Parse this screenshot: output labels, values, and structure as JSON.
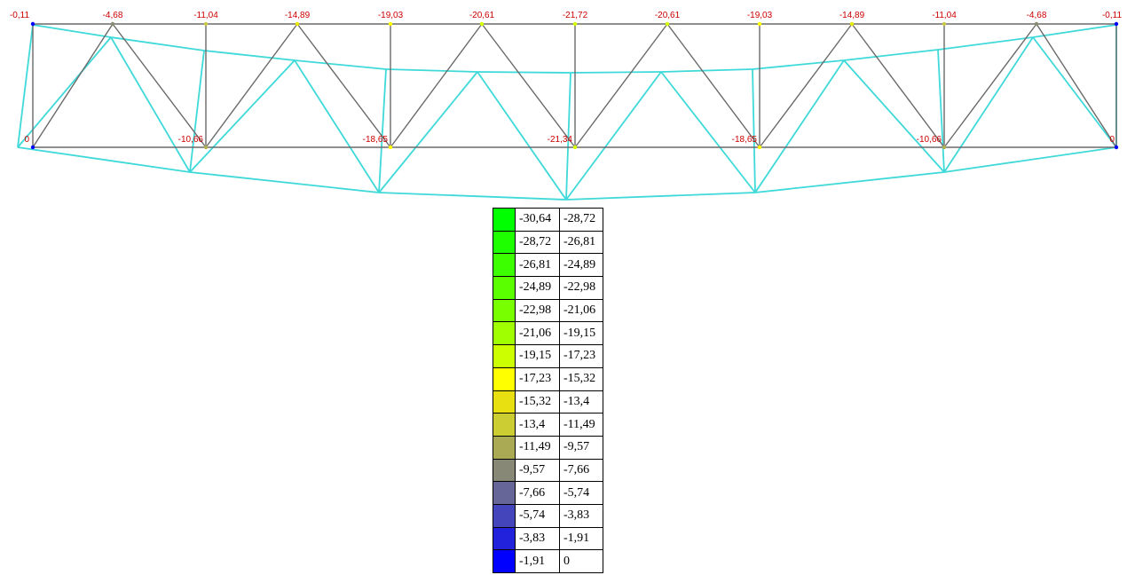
{
  "diagram": {
    "top_chord_labels": [
      "-0,11",
      "-4,68",
      "-11,04",
      "-14,89",
      "-19,03",
      "-20,61",
      "-21,72",
      "-20,61",
      "-19,03",
      "-14,89",
      "-11,04",
      "-4,68",
      "-0,11"
    ],
    "bottom_chord_labels": [
      "0",
      "",
      "-10,66",
      "",
      "-18,65",
      "",
      "-21,34",
      "",
      "-18,65",
      "",
      "-10,66",
      "",
      "0"
    ],
    "node_colors": {
      "top": [
        "#0000ff",
        "#8a8a6e",
        "#c8c84a",
        "#e8e800",
        "#ffff00",
        "#d4ff00",
        "#d4ff00",
        "#d4ff00",
        "#ffff00",
        "#e8e800",
        "#c8c84a",
        "#8a8a6e",
        "#0000ff"
      ],
      "bottom": [
        "#0000ff",
        "",
        "#b0b050",
        "",
        "#ffff00",
        "",
        "#d4ff00",
        "",
        "#ffff00",
        "",
        "#b0b050",
        "",
        "#0000ff"
      ]
    },
    "colors": {
      "undeformed": "#6a6a6a",
      "deformed": "#3fd9d9",
      "labels": "#cc0000"
    }
  },
  "legend": {
    "rows": [
      {
        "from": "-30,64",
        "to": "-28,72",
        "color": "#00ff00"
      },
      {
        "from": "-28,72",
        "to": "-26,81",
        "color": "#1eff00"
      },
      {
        "from": "-26,81",
        "to": "-24,89",
        "color": "#3cff00"
      },
      {
        "from": "-24,89",
        "to": "-22,98",
        "color": "#5aff00"
      },
      {
        "from": "-22,98",
        "to": "-21,06",
        "color": "#78ff00"
      },
      {
        "from": "-21,06",
        "to": "-19,15",
        "color": "#a0ff00"
      },
      {
        "from": "-19,15",
        "to": "-17,23",
        "color": "#ccff00"
      },
      {
        "from": "-17,23",
        "to": "-15,32",
        "color": "#ffff00"
      },
      {
        "from": "-15,32",
        "to": "-13,4",
        "color": "#e8e010"
      },
      {
        "from": "-13,4",
        "to": "-11,49",
        "color": "#cccc33"
      },
      {
        "from": "-11,49",
        "to": "-9,57",
        "color": "#aaaa55"
      },
      {
        "from": "-9,57",
        "to": "-7,66",
        "color": "#888877"
      },
      {
        "from": "-7,66",
        "to": "-5,74",
        "color": "#666699"
      },
      {
        "from": "-5,74",
        "to": "-3,83",
        "color": "#4444bb"
      },
      {
        "from": "-3,83",
        "to": "-1,91",
        "color": "#2222dd"
      },
      {
        "from": "-1,91",
        "to": "0",
        "color": "#0000ff"
      }
    ]
  }
}
